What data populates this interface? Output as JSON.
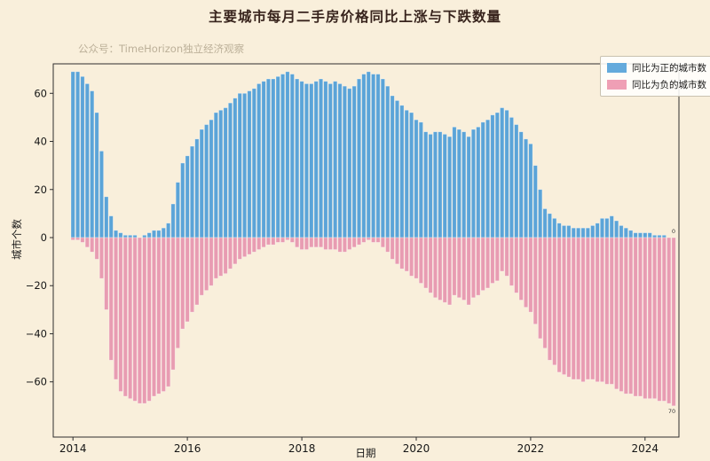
{
  "page": {
    "title": "主要城市每月二手房价格同比上涨与下跌数量",
    "watermark": "公众号：TimeHorizon独立经济观察"
  },
  "legend": {
    "positive": "同比为正的城市数",
    "negative": "同比为负的城市数"
  },
  "annotations": {
    "last_positive": "0",
    "last_negative": "70"
  },
  "colors": {
    "background": "#f9efdb",
    "positive_bar": "#5ba4d8",
    "negative_bar": "#e89cb2",
    "axis": "#2e2e2e",
    "watermark": "#bcb099"
  },
  "chart_data": {
    "type": "bar",
    "title": "主要城市每月二手房价格同比上涨与下跌数量",
    "xlabel": "日期",
    "ylabel": "城市个数",
    "x_tick_labels": [
      "2014",
      "2016",
      "2018",
      "2020",
      "2022",
      "2024"
    ],
    "y_ticks": [
      60,
      40,
      20,
      0,
      -20,
      -40,
      -60
    ],
    "ylim": [
      -83,
      73
    ],
    "grid": false,
    "legend_position": "upper right",
    "start_month": "2014-01",
    "end_month": "2024-07",
    "months": [
      "2014-01",
      "2014-02",
      "2014-03",
      "2014-04",
      "2014-05",
      "2014-06",
      "2014-07",
      "2014-08",
      "2014-09",
      "2014-10",
      "2014-11",
      "2014-12",
      "2015-01",
      "2015-02",
      "2015-03",
      "2015-04",
      "2015-05",
      "2015-06",
      "2015-07",
      "2015-08",
      "2015-09",
      "2015-10",
      "2015-11",
      "2015-12",
      "2016-01",
      "2016-02",
      "2016-03",
      "2016-04",
      "2016-05",
      "2016-06",
      "2016-07",
      "2016-08",
      "2016-09",
      "2016-10",
      "2016-11",
      "2016-12",
      "2017-01",
      "2017-02",
      "2017-03",
      "2017-04",
      "2017-05",
      "2017-06",
      "2017-07",
      "2017-08",
      "2017-09",
      "2017-10",
      "2017-11",
      "2017-12",
      "2018-01",
      "2018-02",
      "2018-03",
      "2018-04",
      "2018-05",
      "2018-06",
      "2018-07",
      "2018-08",
      "2018-09",
      "2018-10",
      "2018-11",
      "2018-12",
      "2019-01",
      "2019-02",
      "2019-03",
      "2019-04",
      "2019-05",
      "2019-06",
      "2019-07",
      "2019-08",
      "2019-09",
      "2019-10",
      "2019-11",
      "2019-12",
      "2020-01",
      "2020-02",
      "2020-03",
      "2020-04",
      "2020-05",
      "2020-06",
      "2020-07",
      "2020-08",
      "2020-09",
      "2020-10",
      "2020-11",
      "2020-12",
      "2021-01",
      "2021-02",
      "2021-03",
      "2021-04",
      "2021-05",
      "2021-06",
      "2021-07",
      "2021-08",
      "2021-09",
      "2021-10",
      "2021-11",
      "2021-12",
      "2022-01",
      "2022-02",
      "2022-03",
      "2022-04",
      "2022-05",
      "2022-06",
      "2022-07",
      "2022-08",
      "2022-09",
      "2022-10",
      "2022-11",
      "2022-12",
      "2023-01",
      "2023-02",
      "2023-03",
      "2023-04",
      "2023-05",
      "2023-06",
      "2023-07",
      "2023-08",
      "2023-09",
      "2023-10",
      "2023-11",
      "2023-12",
      "2024-01",
      "2024-02",
      "2024-03",
      "2024-04",
      "2024-05",
      "2024-06",
      "2024-07"
    ],
    "series": [
      {
        "name": "同比为正的城市数",
        "color": "#5ba4d8",
        "values": [
          69,
          69,
          67,
          64,
          61,
          52,
          36,
          17,
          9,
          3,
          2,
          1,
          1,
          1,
          0,
          1,
          2,
          3,
          3,
          4,
          6,
          14,
          23,
          31,
          34,
          38,
          41,
          45,
          47,
          49,
          52,
          53,
          54,
          56,
          58,
          60,
          60,
          61,
          62,
          64,
          65,
          66,
          66,
          67,
          68,
          69,
          68,
          66,
          65,
          64,
          64,
          65,
          66,
          65,
          64,
          65,
          64,
          63,
          62,
          63,
          66,
          68,
          69,
          68,
          68,
          66,
          63,
          59,
          57,
          55,
          53,
          52,
          49,
          48,
          44,
          43,
          44,
          44,
          43,
          42,
          46,
          45,
          44,
          42,
          45,
          46,
          48,
          49,
          51,
          52,
          54,
          53,
          50,
          47,
          44,
          41,
          39,
          30,
          20,
          12,
          10,
          8,
          6,
          5,
          5,
          4,
          4,
          4,
          4,
          5,
          6,
          8,
          8,
          9,
          7,
          5,
          4,
          3,
          2,
          2,
          2,
          2,
          1,
          1,
          1,
          0,
          0
        ]
      },
      {
        "name": "同比为负的城市数",
        "color": "#e89cb2",
        "values": [
          -1,
          -1,
          -2,
          -4,
          -6,
          -9,
          -17,
          -30,
          -51,
          -59,
          -64,
          -66,
          -67,
          -68,
          -69,
          -69,
          -68,
          -66,
          -65,
          -64,
          -62,
          -55,
          -46,
          -38,
          -35,
          -31,
          -28,
          -24,
          -22,
          -20,
          -17,
          -16,
          -15,
          -13,
          -11,
          -9,
          -8,
          -7,
          -6,
          -5,
          -4,
          -3,
          -3,
          -2,
          -2,
          -1,
          -2,
          -4,
          -5,
          -5,
          -4,
          -4,
          -4,
          -5,
          -5,
          -5,
          -6,
          -6,
          -5,
          -4,
          -3,
          -2,
          -1,
          -2,
          -2,
          -4,
          -6,
          -9,
          -11,
          -13,
          -14,
          -16,
          -17,
          -19,
          -21,
          -23,
          -25,
          -26,
          -27,
          -28,
          -24,
          -25,
          -26,
          -28,
          -25,
          -24,
          -22,
          -21,
          -19,
          -18,
          -14,
          -16,
          -20,
          -23,
          -26,
          -29,
          -31,
          -36,
          -42,
          -46,
          -51,
          -53,
          -56,
          -57,
          -58,
          -59,
          -59,
          -60,
          -59,
          -59,
          -60,
          -60,
          -61,
          -61,
          -63,
          -64,
          -65,
          -65,
          -66,
          -66,
          -67,
          -67,
          -67,
          -68,
          -68,
          -69,
          -70
        ]
      }
    ]
  }
}
